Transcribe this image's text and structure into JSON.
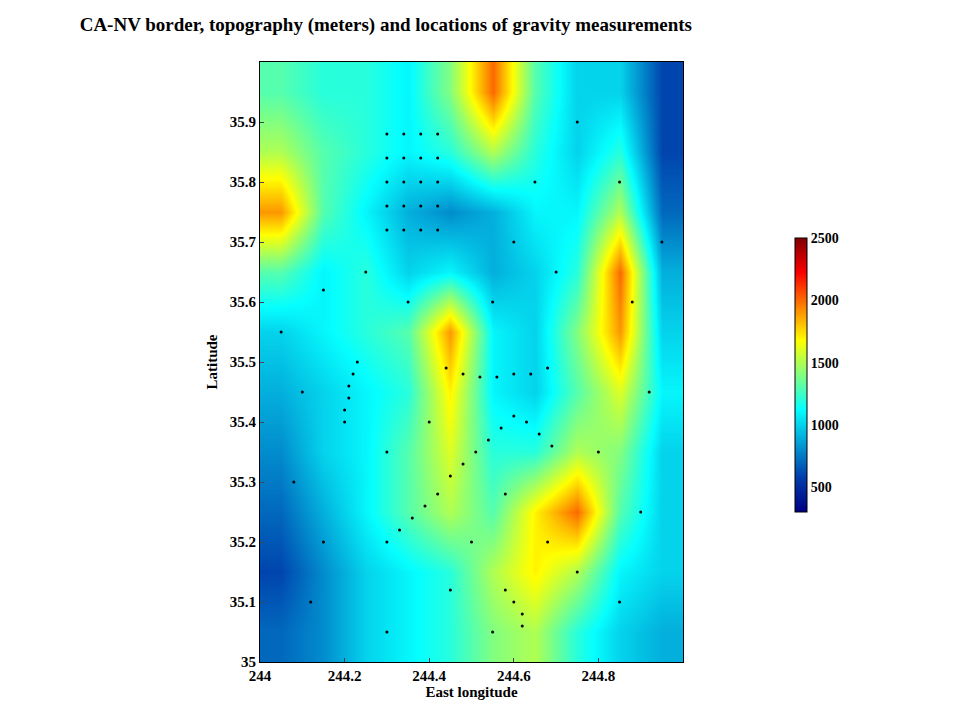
{
  "chart_data": {
    "type": "heatmap",
    "title": "CA-NV border, topography (meters) and locations of gravity measurements",
    "x_label": "East longitude",
    "y_label": "Latitude",
    "x": [
      244.05,
      244.15,
      244.25,
      244.35,
      244.45,
      244.55,
      244.65,
      244.75,
      244.85,
      244.95
    ],
    "y": [
      35.05,
      35.15,
      35.25,
      35.35,
      35.45,
      35.55,
      35.65,
      35.75,
      35.85,
      35.95
    ],
    "z": [
      [
        700,
        800,
        1000,
        1100,
        1200,
        1400,
        1500,
        1200,
        1000,
        900
      ],
      [
        600,
        800,
        1000,
        1100,
        1200,
        1500,
        1700,
        1500,
        1100,
        1000
      ],
      [
        700,
        900,
        1100,
        1300,
        1500,
        1300,
        1700,
        2000,
        1300,
        1000
      ],
      [
        800,
        1000,
        1100,
        1300,
        1600,
        1200,
        1200,
        1500,
        1400,
        1000
      ],
      [
        900,
        1000,
        1100,
        1200,
        1700,
        1100,
        1000,
        1300,
        1600,
        1100
      ],
      [
        1000,
        1100,
        1200,
        1300,
        1900,
        1100,
        1000,
        1400,
        1900,
        1000
      ],
      [
        1300,
        1100,
        1200,
        1000,
        1100,
        900,
        1000,
        1200,
        2000,
        900
      ],
      [
        1900,
        1300,
        1100,
        900,
        800,
        900,
        1100,
        1100,
        1500,
        700
      ],
      [
        1500,
        1300,
        1200,
        1100,
        1200,
        1500,
        1200,
        1000,
        1200,
        600
      ],
      [
        1300,
        1200,
        1200,
        1100,
        1400,
        2000,
        1300,
        1000,
        1000,
        600
      ]
    ],
    "colorbar": {
      "range": [
        300,
        2500
      ],
      "ticks": [
        500,
        1000,
        1500,
        2000,
        2500
      ]
    },
    "points": [
      [
        244.3,
        35.2
      ],
      [
        244.33,
        35.22
      ],
      [
        244.36,
        35.24
      ],
      [
        244.39,
        35.26
      ],
      [
        244.42,
        35.28
      ],
      [
        244.45,
        35.31
      ],
      [
        244.48,
        35.33
      ],
      [
        244.51,
        35.35
      ],
      [
        244.54,
        35.37
      ],
      [
        244.57,
        35.39
      ],
      [
        244.6,
        35.41
      ],
      [
        244.23,
        35.5
      ],
      [
        244.22,
        35.48
      ],
      [
        244.21,
        35.46
      ],
      [
        244.21,
        35.44
      ],
      [
        244.2,
        35.42
      ],
      [
        244.2,
        35.4
      ],
      [
        244.44,
        35.49
      ],
      [
        244.48,
        35.48
      ],
      [
        244.52,
        35.475
      ],
      [
        244.56,
        35.475
      ],
      [
        244.6,
        35.48
      ],
      [
        244.64,
        35.48
      ],
      [
        244.68,
        35.49
      ],
      [
        244.63,
        35.4
      ],
      [
        244.66,
        35.38
      ],
      [
        244.69,
        35.36
      ],
      [
        244.3,
        35.72
      ],
      [
        244.34,
        35.72
      ],
      [
        244.38,
        35.72
      ],
      [
        244.42,
        35.72
      ],
      [
        244.3,
        35.76
      ],
      [
        244.34,
        35.76
      ],
      [
        244.38,
        35.76
      ],
      [
        244.42,
        35.76
      ],
      [
        244.3,
        35.8
      ],
      [
        244.34,
        35.8
      ],
      [
        244.38,
        35.8
      ],
      [
        244.42,
        35.8
      ],
      [
        244.3,
        35.84
      ],
      [
        244.34,
        35.84
      ],
      [
        244.38,
        35.84
      ],
      [
        244.42,
        35.84
      ],
      [
        244.3,
        35.88
      ],
      [
        244.34,
        35.88
      ],
      [
        244.38,
        35.88
      ],
      [
        244.42,
        35.88
      ],
      [
        244.05,
        35.55
      ],
      [
        244.1,
        35.45
      ],
      [
        244.08,
        35.3
      ],
      [
        244.15,
        35.2
      ],
      [
        244.12,
        35.1
      ],
      [
        244.3,
        35.05
      ],
      [
        244.55,
        35.05
      ],
      [
        244.62,
        35.08
      ],
      [
        244.75,
        35.15
      ],
      [
        244.85,
        35.1
      ],
      [
        244.9,
        35.25
      ],
      [
        244.8,
        35.35
      ],
      [
        244.92,
        35.45
      ],
      [
        244.88,
        35.6
      ],
      [
        244.95,
        35.7
      ],
      [
        244.85,
        35.8
      ],
      [
        244.75,
        35.9
      ],
      [
        244.65,
        35.8
      ],
      [
        244.6,
        35.7
      ],
      [
        244.55,
        35.6
      ],
      [
        244.7,
        35.65
      ],
      [
        244.35,
        35.6
      ],
      [
        244.25,
        35.65
      ],
      [
        244.15,
        35.62
      ],
      [
        244.5,
        35.2
      ],
      [
        244.45,
        35.12
      ],
      [
        244.4,
        35.4
      ],
      [
        244.3,
        35.35
      ],
      [
        244.58,
        35.28
      ],
      [
        244.68,
        35.2
      ],
      [
        244.58,
        35.12
      ],
      [
        244.6,
        35.1
      ],
      [
        244.62,
        35.06
      ]
    ],
    "color": "#000000",
    "marker": "circle",
    "xlim": [
      244,
      245
    ],
    "ylim": [
      35,
      36
    ],
    "xticks": [
      244,
      244.2,
      244.4,
      244.6,
      244.8
    ],
    "yticks": [
      35,
      35.1,
      35.2,
      35.3,
      35.4,
      35.5,
      35.6,
      35.7,
      35.8,
      35.9
    ],
    "grid": false
  }
}
